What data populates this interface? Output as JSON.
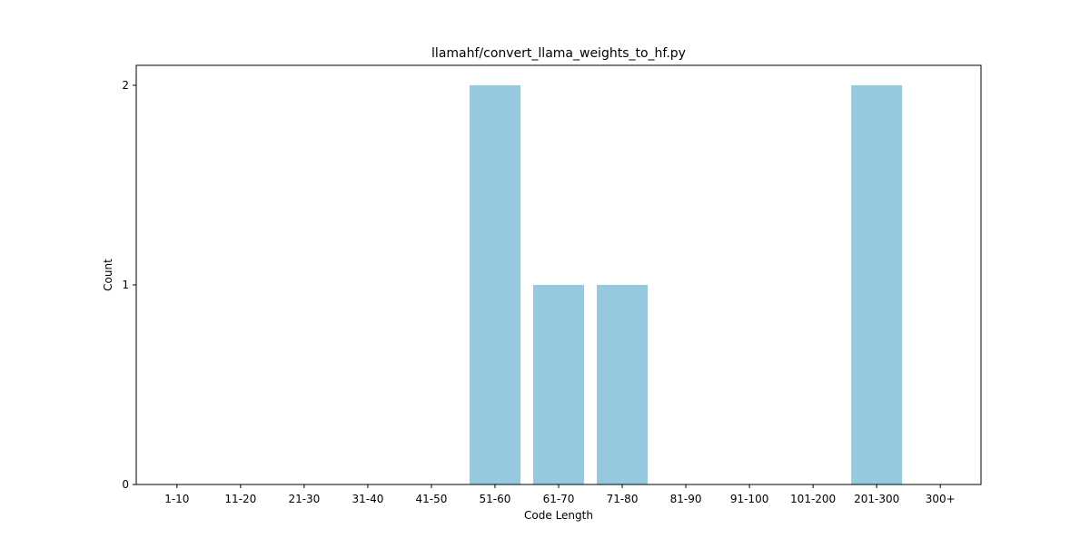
{
  "chart_data": {
    "type": "bar",
    "title": "llamahf/convert_llama_weights_to_hf.py",
    "xlabel": "Code Length",
    "ylabel": "Count",
    "categories": [
      "1-10",
      "11-20",
      "21-30",
      "31-40",
      "41-50",
      "51-60",
      "61-70",
      "71-80",
      "81-90",
      "91-100",
      "101-200",
      "201-300",
      "300+"
    ],
    "values": [
      0,
      0,
      0,
      0,
      0,
      2,
      1,
      1,
      0,
      0,
      0,
      2,
      0
    ],
    "ylim": [
      0,
      2.1
    ],
    "yticks": [
      0,
      1,
      2
    ],
    "grid": false,
    "legend": "none",
    "bar_color": "#96c9dd"
  }
}
